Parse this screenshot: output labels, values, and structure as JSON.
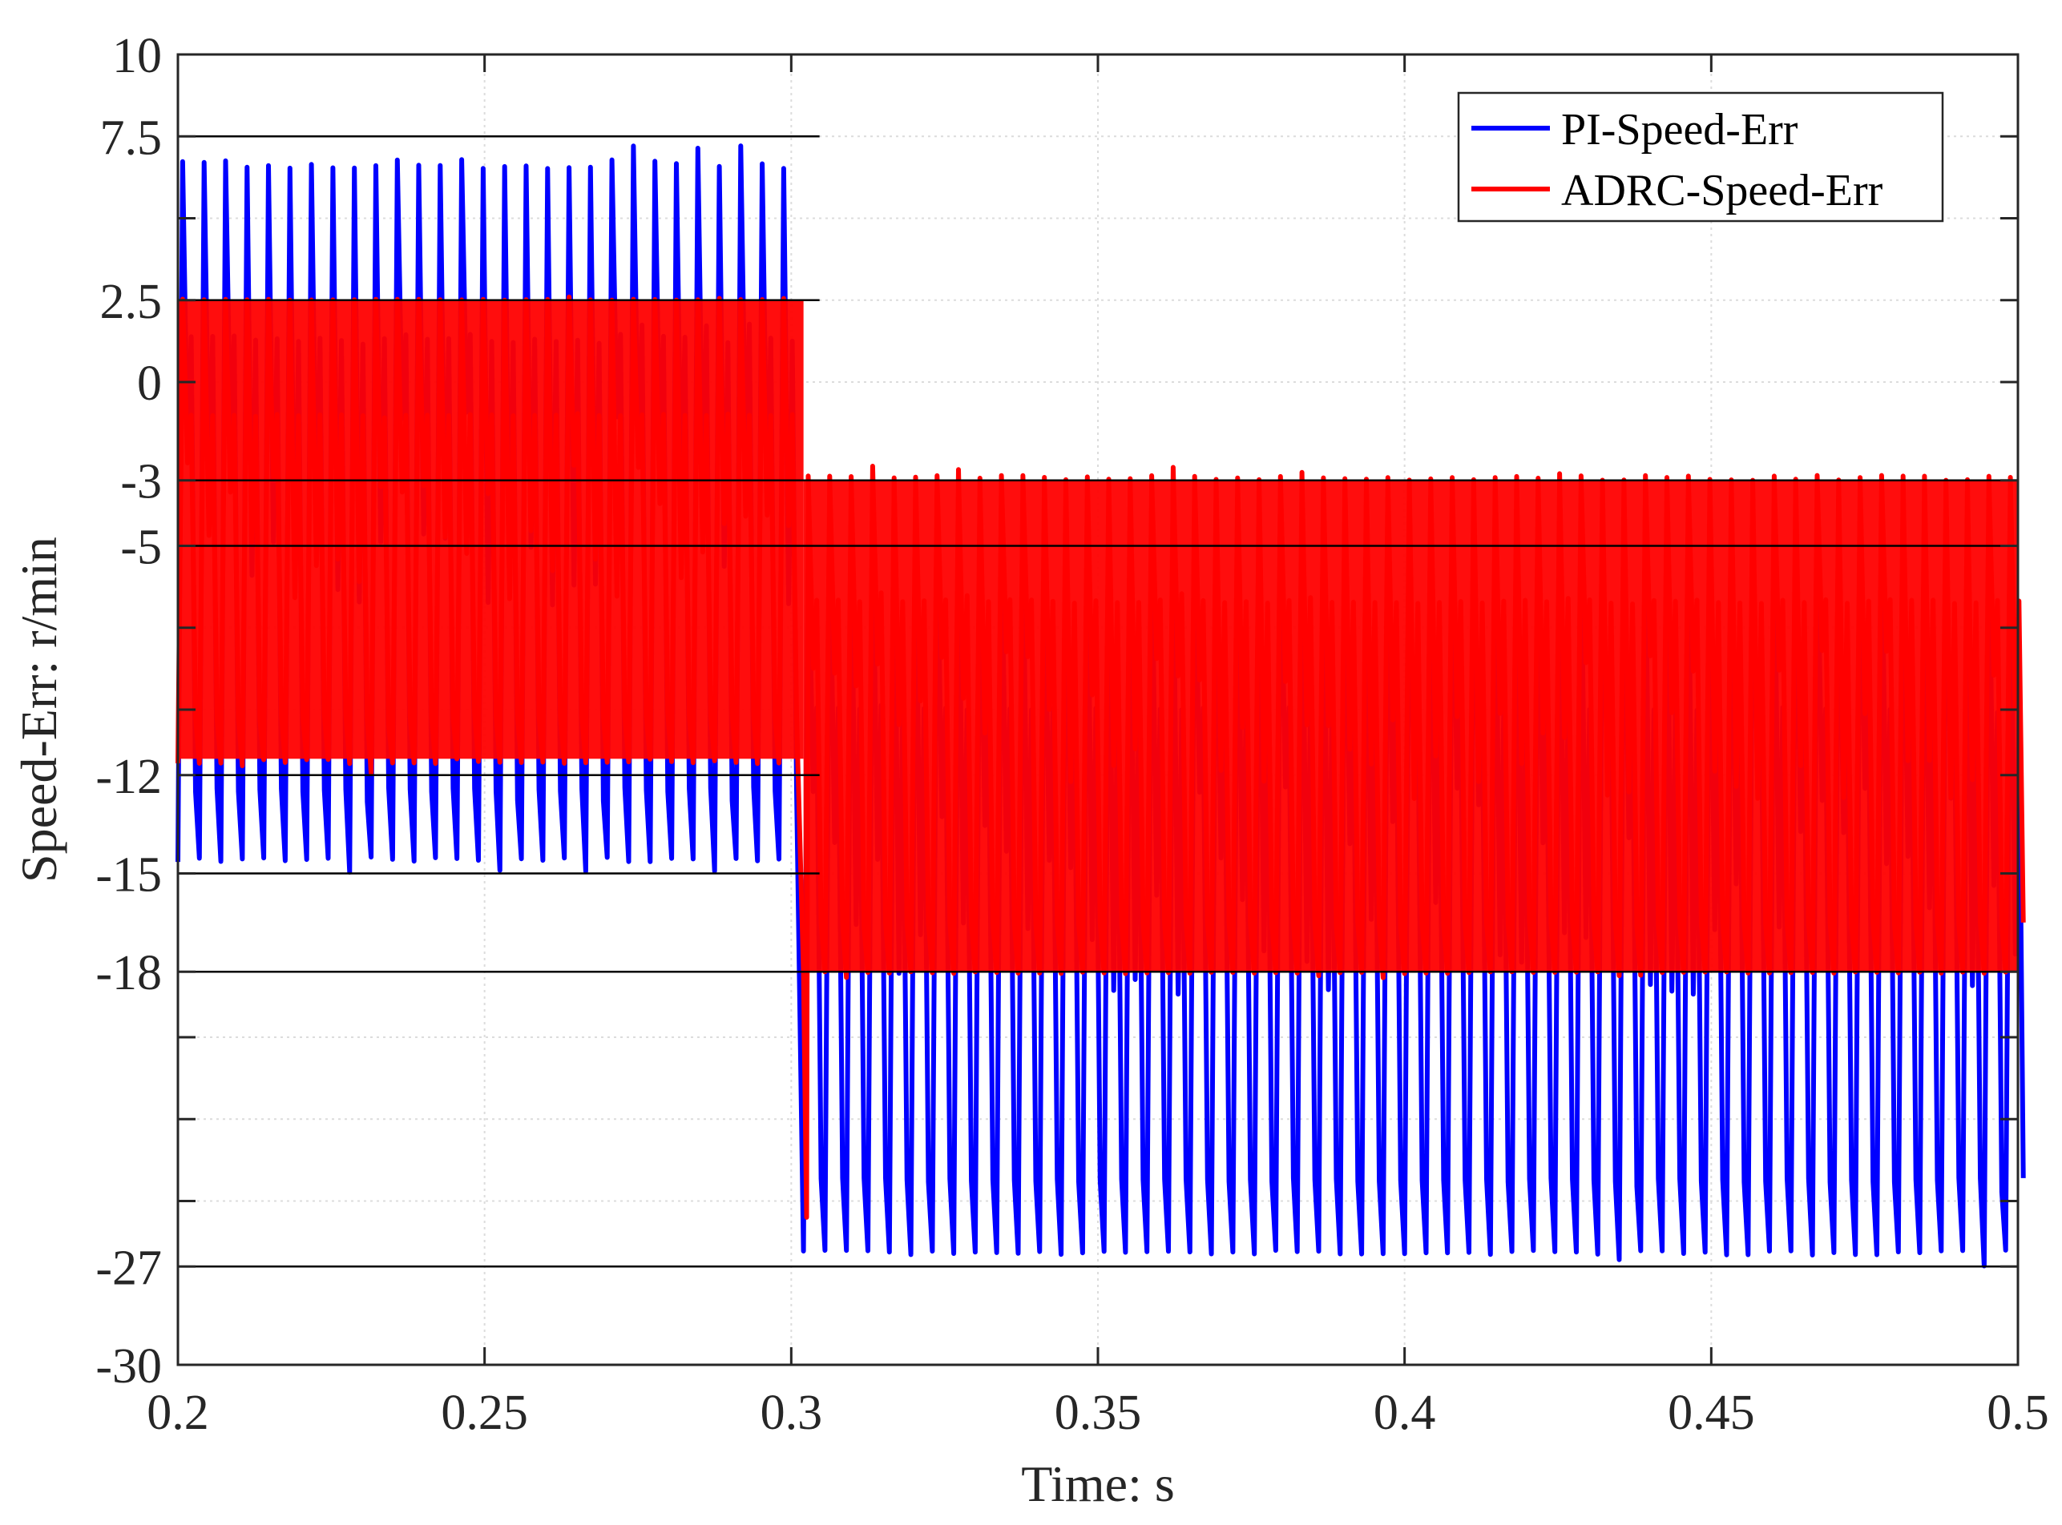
{
  "chart_data": {
    "type": "line",
    "title": "",
    "xlabel": "Time: s",
    "ylabel": "Speed-Err: r/min",
    "xlim": [
      0.2,
      0.5
    ],
    "ylim": [
      -30,
      10
    ],
    "grid": true,
    "legend_position": "top-right",
    "x_ticks": [
      0.2,
      0.25,
      0.3,
      0.35,
      0.4,
      0.45,
      0.5
    ],
    "x_tick_labels": [
      "0.2",
      "0.25",
      "0.3",
      "0.35",
      "0.4",
      "0.45",
      "0.5"
    ],
    "y_ticks": [
      10,
      7.5,
      2.5,
      0,
      -3,
      -5,
      -12,
      -15,
      -18,
      -27,
      -30
    ],
    "y_tick_labels": [
      "10",
      "7.5",
      "2.5",
      "0",
      "-3",
      "-5",
      "-12",
      "-15",
      "-18",
      "-27",
      "-30"
    ],
    "minor_y_ticks": [
      5,
      -7.5,
      -10,
      -20,
      -22.5,
      -25
    ],
    "reference_lines": [
      {
        "y": 7.5,
        "x_range": [
          0.2,
          0.302
        ]
      },
      {
        "y": 2.5,
        "x_range": [
          0.2,
          0.302
        ]
      },
      {
        "y": -12,
        "x_range": [
          0.2,
          0.302
        ]
      },
      {
        "y": -15,
        "x_range": [
          0.2,
          0.302
        ]
      },
      {
        "y": -3,
        "x_range": [
          0.2,
          0.5
        ]
      },
      {
        "y": -5,
        "x_range": [
          0.2,
          0.5
        ]
      },
      {
        "y": -18,
        "x_range": [
          0.2,
          0.5
        ]
      },
      {
        "y": -27,
        "x_range": [
          0.2,
          0.5
        ]
      }
    ],
    "series": [
      {
        "name": "PI-Speed-Err",
        "color": "#0000ff",
        "oscillation_period_s": 0.0035,
        "segments": [
          {
            "t_start": 0.2,
            "t_end": 0.302,
            "min": -14.5,
            "max": 6.5,
            "peak": 7.5,
            "trough": -15
          },
          {
            "t_start": 0.302,
            "t_end": 0.5,
            "min": -26.5,
            "max": -4.5,
            "peak": -4.2,
            "trough": -27
          }
        ]
      },
      {
        "name": "ADRC-Speed-Err",
        "color": "#ff0000",
        "oscillation_period_s": 0.0035,
        "segments": [
          {
            "t_start": 0.2,
            "t_end": 0.302,
            "min": -11.5,
            "max": 2.5,
            "peak": 2.6,
            "trough": -12
          },
          {
            "t_start": 0.302,
            "t_end": 0.5,
            "min": -18,
            "max": -3,
            "peak": -2.5,
            "trough": -18.2
          }
        ],
        "transient": {
          "t": 0.3025,
          "min": -25.5
        }
      }
    ]
  }
}
